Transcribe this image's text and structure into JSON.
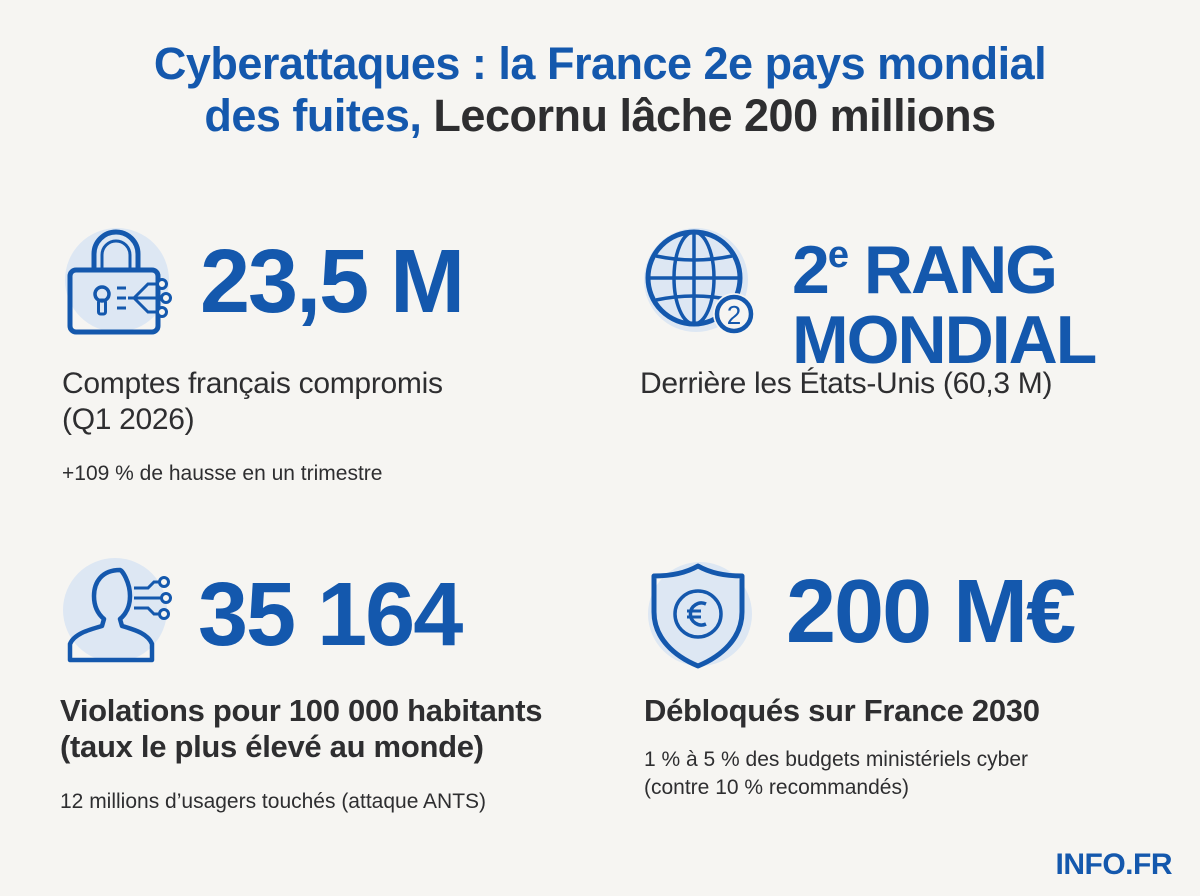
{
  "headline": {
    "line1": "Cyberattaques : la France 2e pays mondial",
    "line2_blue": "des fuites,",
    "line2_dark": " Lecornu lâche 200 millions"
  },
  "stats": {
    "comptes": {
      "icon": "padlock-circuit-icon",
      "value": "23,5 M",
      "label_line1": "Comptes français compromis",
      "label_line2": "(Q1 2026)",
      "sub": "+109 % de hausse en un trimestre"
    },
    "rang": {
      "icon": "globe-number-icon",
      "badge": "2",
      "value_line1_num": "2",
      "value_line1_sup": "e",
      "value_line1_rest": " RANG",
      "value_line2": "MONDIAL",
      "label": "Derrière les États-Unis (60,3 M)"
    },
    "violations": {
      "icon": "user-circuit-icon",
      "value": "35 164",
      "label_line1": "Violations pour 100 000 habitants",
      "label_line2": "(taux le plus élevé au monde)",
      "sub": "12 millions d’usagers touchés (attaque ANTS)"
    },
    "budget": {
      "icon": "shield-euro-icon",
      "value": "200 M€",
      "label": "Débloqués sur France 2030",
      "sub_line1": "1 % à 5 % des budgets ministériels cyber",
      "sub_line2": "(contre 10 % recommandés)"
    }
  },
  "logo": "INFO.FR",
  "colors": {
    "accent": "#1458ad",
    "text": "#2e2e30",
    "background": "#f6f5f2",
    "icon_bg": "#dde7f3"
  }
}
